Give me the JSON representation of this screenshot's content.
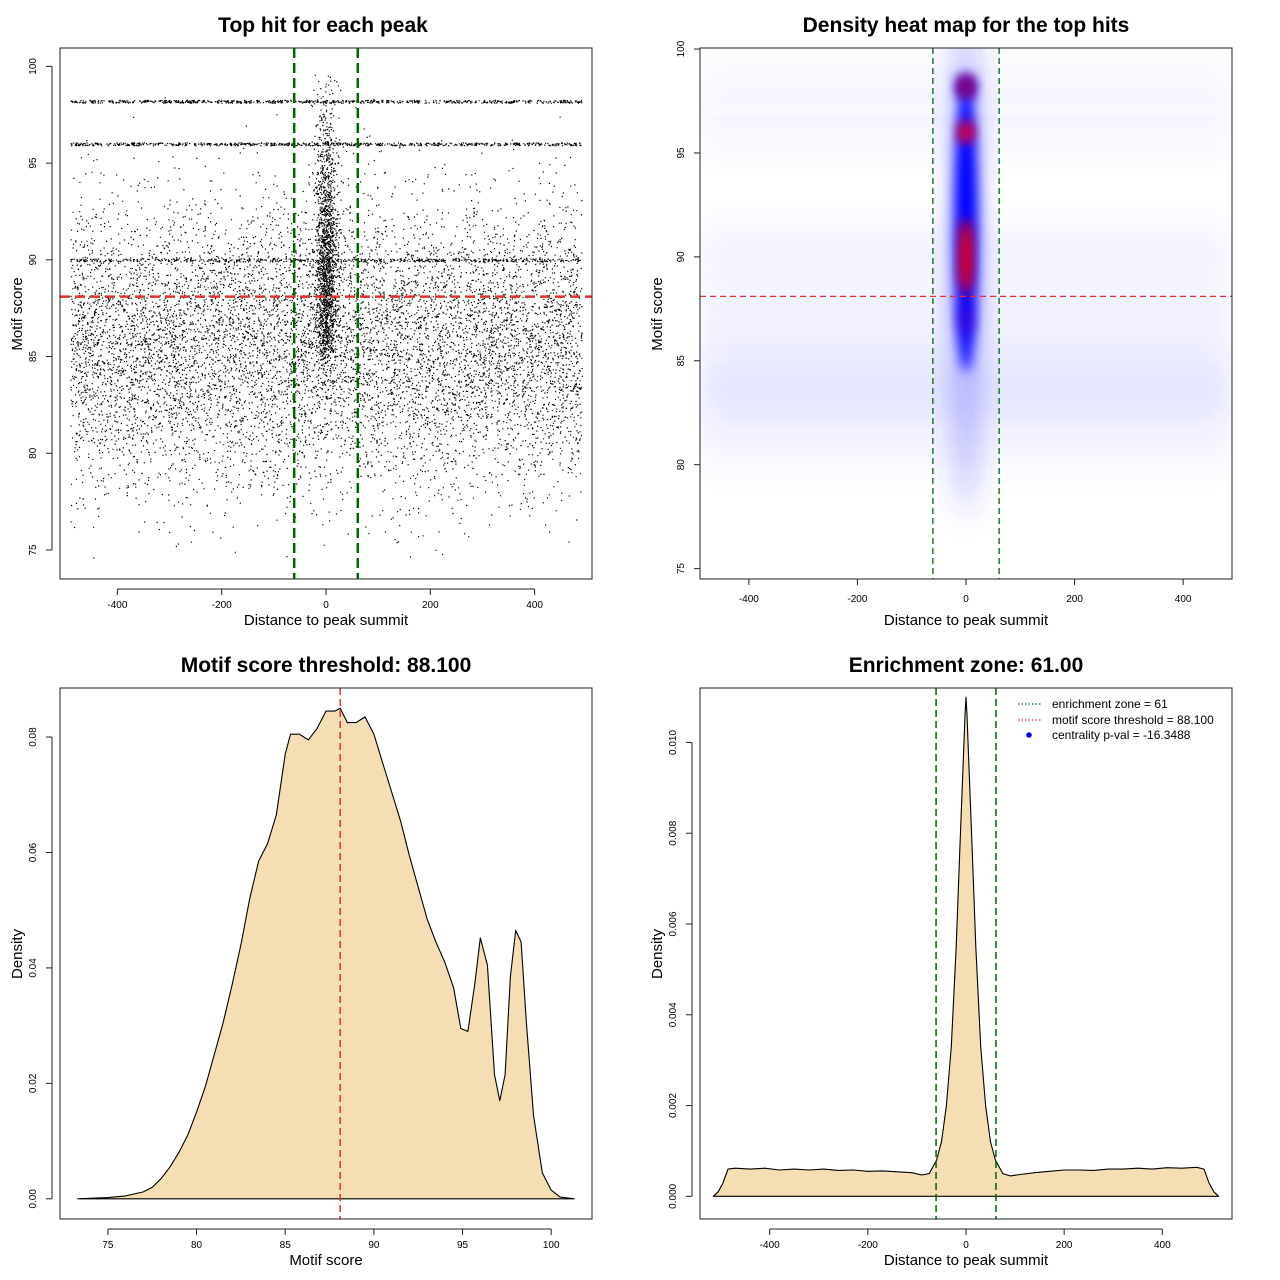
{
  "chart_data": [
    {
      "id": "scatter",
      "type": "scatter",
      "title": "Top hit for each peak",
      "xlabel": "Distance to peak summit",
      "ylabel": "Motif score",
      "xlim": [
        -510,
        510
      ],
      "ylim": [
        73.5,
        100.95
      ],
      "xticks": [
        -400,
        -200,
        0,
        200,
        400
      ],
      "yticks": [
        75,
        80,
        85,
        90,
        95,
        100
      ],
      "vlines": [
        -61,
        61
      ],
      "hline": 88.1,
      "point_summary": {
        "x_range": [
          -490,
          490
        ],
        "y_range": [
          74.5,
          99.6
        ],
        "central_cluster_x": [
          -60,
          60
        ],
        "dense_score_rows": [
          98.2,
          96.0,
          90.0
        ]
      }
    },
    {
      "id": "heatmap",
      "type": "heatmap",
      "title": "Density heat map for the top hits",
      "xlabel": "Distance to peak summit",
      "ylabel": "Motif score",
      "xlim": [
        -490,
        490
      ],
      "ylim": [
        74.5,
        100.05
      ],
      "xticks": [
        -400,
        -200,
        0,
        200,
        400
      ],
      "yticks": [
        75,
        80,
        85,
        90,
        95,
        100
      ],
      "vlines": [
        -61,
        61
      ],
      "hline": 88.1,
      "hotspots": [
        {
          "x": 0,
          "y": 98.2,
          "level": "high"
        },
        {
          "x": 0,
          "y": 96.0,
          "level": "high"
        },
        {
          "x": 0,
          "y": 90.0,
          "level": "high"
        },
        {
          "x": 0,
          "y": 87.0,
          "level": "medium"
        }
      ]
    },
    {
      "id": "scoredens",
      "type": "area",
      "title": "Motif score threshold: 88.100",
      "xlabel": "Motif score",
      "ylabel": "Density",
      "xlim": [
        72.3,
        102.3
      ],
      "ylim": [
        -0.0035,
        0.0885
      ],
      "xticks": [
        75,
        80,
        85,
        90,
        95,
        100
      ],
      "yticks": [
        0.0,
        0.02,
        0.04,
        0.06,
        0.08
      ],
      "ytick_labels": [
        "0.00",
        "0.02",
        "0.04",
        "0.06",
        "0.08"
      ],
      "vline": 88.1,
      "x": [
        73.3,
        75,
        76,
        77,
        77.5,
        78,
        78.5,
        79,
        79.5,
        80,
        80.5,
        81,
        81.5,
        82,
        82.5,
        83,
        83.5,
        84,
        84.5,
        85,
        85.3,
        85.8,
        86.3,
        86.8,
        87.3,
        87.8,
        88.1,
        88.5,
        89.0,
        89.5,
        90,
        90.5,
        91,
        91.5,
        92,
        92.5,
        93,
        93.5,
        94,
        94.5,
        94.9,
        95.3,
        95.7,
        96.0,
        96.4,
        96.8,
        97.1,
        97.4,
        97.7,
        98.0,
        98.3,
        98.6,
        99,
        99.5,
        100,
        100.5,
        101.3
      ],
      "y": [
        0.0,
        0.0002,
        0.0005,
        0.0012,
        0.002,
        0.0035,
        0.0055,
        0.008,
        0.011,
        0.015,
        0.0195,
        0.025,
        0.0305,
        0.037,
        0.044,
        0.052,
        0.0585,
        0.0615,
        0.0665,
        0.077,
        0.0805,
        0.0805,
        0.0795,
        0.0815,
        0.0845,
        0.0845,
        0.085,
        0.0825,
        0.0825,
        0.0835,
        0.0805,
        0.0755,
        0.0705,
        0.0655,
        0.0595,
        0.054,
        0.0485,
        0.0445,
        0.041,
        0.0365,
        0.0295,
        0.029,
        0.0375,
        0.0452,
        0.0405,
        0.0215,
        0.017,
        0.0215,
        0.0385,
        0.0465,
        0.0445,
        0.0305,
        0.0145,
        0.0045,
        0.0015,
        0.0003,
        0.0
      ]
    },
    {
      "id": "distdens",
      "type": "area",
      "title": "Enrichment zone: 61.00",
      "xlabel": "Distance to peak summit",
      "ylabel": "Density",
      "xlim": [
        -542,
        542
      ],
      "ylim": [
        -0.0005,
        0.0112
      ],
      "xticks": [
        -400,
        -200,
        0,
        200,
        400
      ],
      "yticks": [
        0.0,
        0.002,
        0.004,
        0.006,
        0.008,
        0.01
      ],
      "ytick_labels": [
        "0.000",
        "0.002",
        "0.004",
        "0.006",
        "0.008",
        "0.010"
      ],
      "vlines": [
        -61,
        61
      ],
      "x": [
        -515,
        -505,
        -495,
        -485,
        -470,
        -440,
        -410,
        -380,
        -350,
        -320,
        -290,
        -260,
        -230,
        -200,
        -170,
        -140,
        -110,
        -90,
        -75,
        -60,
        -50,
        -40,
        -30,
        -20,
        -12,
        -6,
        -2,
        0,
        2,
        6,
        12,
        20,
        30,
        40,
        50,
        60,
        75,
        90,
        110,
        140,
        170,
        200,
        230,
        260,
        290,
        320,
        350,
        380,
        410,
        440,
        470,
        485,
        495,
        505,
        515
      ],
      "y": [
        0.0,
        0.0001,
        0.0003,
        0.0006,
        0.00062,
        0.0006,
        0.00062,
        0.00058,
        0.0006,
        0.00058,
        0.0006,
        0.00057,
        0.00058,
        0.00055,
        0.00056,
        0.00054,
        0.00052,
        0.00047,
        0.0005,
        0.0008,
        0.0012,
        0.002,
        0.0033,
        0.0055,
        0.0078,
        0.0095,
        0.0106,
        0.011,
        0.0106,
        0.0095,
        0.0078,
        0.0055,
        0.0033,
        0.002,
        0.0012,
        0.0008,
        0.0005,
        0.00045,
        0.00048,
        0.00052,
        0.00055,
        0.00058,
        0.00058,
        0.00057,
        0.0006,
        0.0006,
        0.00062,
        0.0006,
        0.00063,
        0.00062,
        0.00064,
        0.0006,
        0.0003,
        0.0001,
        0.0
      ],
      "legend": {
        "position": "top-right",
        "entries": [
          {
            "label": "enrichment zone = 61",
            "color": "#006400",
            "style": "dotted-line"
          },
          {
            "label": "motif score threshold = 88.100",
            "color": "#e0302f",
            "style": "dotted-line"
          },
          {
            "label": "centrality p-val = -16.3488",
            "color": "#0000ff",
            "style": "point"
          }
        ]
      }
    }
  ],
  "colors": {
    "fill_beige": "#f5deb3",
    "dash_green": "#006400",
    "dash_red": "#e0302f",
    "heat_blue": "#0000ff",
    "heat_red": "#ff0000"
  }
}
